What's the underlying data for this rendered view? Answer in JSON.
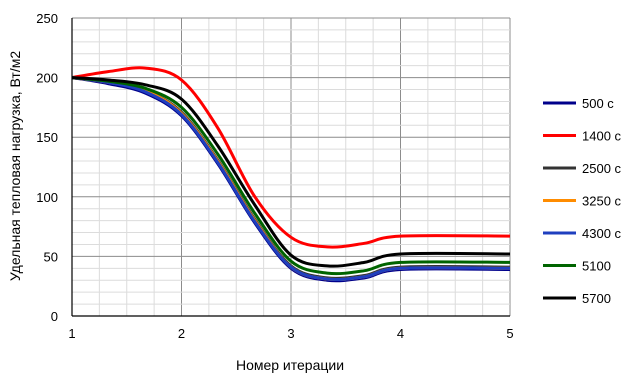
{
  "chart_data": {
    "type": "line",
    "title": "",
    "xlabel": "Номер итерации",
    "ylabel": "Удельная тепловая нагрузка, Вт/м2",
    "xlim": [
      1,
      5
    ],
    "ylim": [
      0,
      250
    ],
    "x_ticks": [
      "1",
      "2",
      "3",
      "4",
      "5"
    ],
    "y_ticks": [
      "0",
      "50",
      "100",
      "150",
      "200",
      "250"
    ],
    "grid": true,
    "legend_position": "right",
    "x": [
      1,
      1.33,
      1.67,
      2,
      2.33,
      2.67,
      3,
      3.33,
      3.67,
      4,
      5
    ],
    "series": [
      {
        "name": "500 c",
        "color": "#00008b",
        "values": [
          200,
          195,
          187,
          168,
          128,
          78,
          40,
          30,
          32,
          39,
          39
        ]
      },
      {
        "name": "1400 c",
        "color": "#ff0000",
        "values": [
          200,
          205,
          208,
          198,
          158,
          100,
          66,
          58,
          61,
          67,
          67
        ]
      },
      {
        "name": "2500 c",
        "color": "#333333",
        "values": [
          200,
          196,
          189,
          171,
          131,
          81,
          42,
          32,
          34,
          41,
          41
        ]
      },
      {
        "name": "3250 c",
        "color": "#ff8c00",
        "values": [
          200,
          196,
          189,
          170,
          130,
          80,
          41,
          31,
          33,
          40,
          40
        ]
      },
      {
        "name": "4300 c",
        "color": "#1f3fbf",
        "values": [
          200,
          196,
          188,
          169,
          129,
          79,
          41,
          31,
          33,
          40,
          40
        ]
      },
      {
        "name": "5100",
        "color": "#006400",
        "values": [
          200,
          197,
          191,
          175,
          136,
          86,
          46,
          36,
          38,
          45,
          45
        ]
      },
      {
        "name": "5700",
        "color": "#000000",
        "values": [
          200,
          198,
          194,
          182,
          143,
          93,
          51,
          42,
          45,
          52,
          52
        ]
      }
    ]
  }
}
